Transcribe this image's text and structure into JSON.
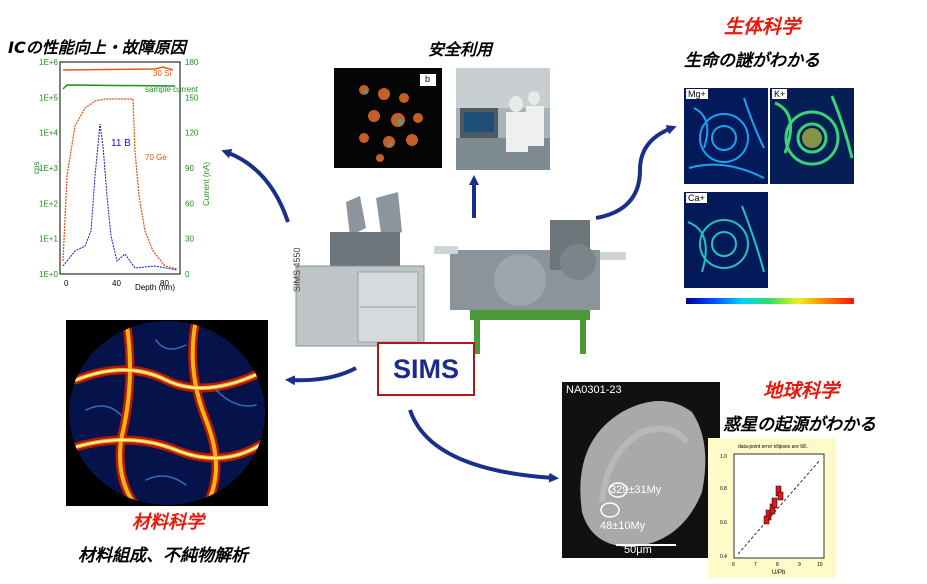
{
  "center": {
    "label": "SIMS"
  },
  "ic": {
    "title": "ICの性能向上・故障原因",
    "chart_data": {
      "type": "line",
      "x_ticks": [
        "0",
        "40",
        "80"
      ],
      "xlabel": "Depth (nm)",
      "ylabel_left": "cps",
      "ylabel_right": "Current (nA)",
      "y_left_ticks": [
        "1E+0",
        "1E+1",
        "1E+2",
        "1E+3",
        "1E+4",
        "1E+5",
        "1E+6"
      ],
      "y_right_ticks": [
        "0",
        "30",
        "60",
        "90",
        "120",
        "150",
        "180"
      ],
      "annotations": [
        "30 Si",
        "sample current",
        "11 B",
        "70 Ge"
      ]
    }
  },
  "safe": {
    "title": "安全利用",
    "panel_label": "b"
  },
  "bio": {
    "title_red": "生体科学",
    "subtitle": "生命の謎がわかる",
    "labels": [
      "Mg+",
      "K+",
      "Ca+"
    ]
  },
  "material": {
    "title_red": "材料科学",
    "subtitle": "材料組成、不純物解析"
  },
  "earth": {
    "title_red": "地球科学",
    "subtitle": "惑星の起源がわかる",
    "sample_id": "NA0301-23",
    "age1": "329±31My",
    "age2": "48±10My",
    "scale": "50μm",
    "plot_title": "data-point error ellipses are 68..",
    "plot_xlabel": "U/Pb",
    "plot_xticks": [
      "6",
      "7",
      "8",
      "9",
      "10"
    ],
    "plot_yticks": [
      "0.4",
      "0.6",
      "0.8",
      "1.0"
    ]
  },
  "machine": {
    "label": "SIMS 4550"
  },
  "colors": {
    "arrow": "#1a2f8a",
    "accent_red": "#e8180c",
    "sims_text": "#1c2a8e"
  }
}
